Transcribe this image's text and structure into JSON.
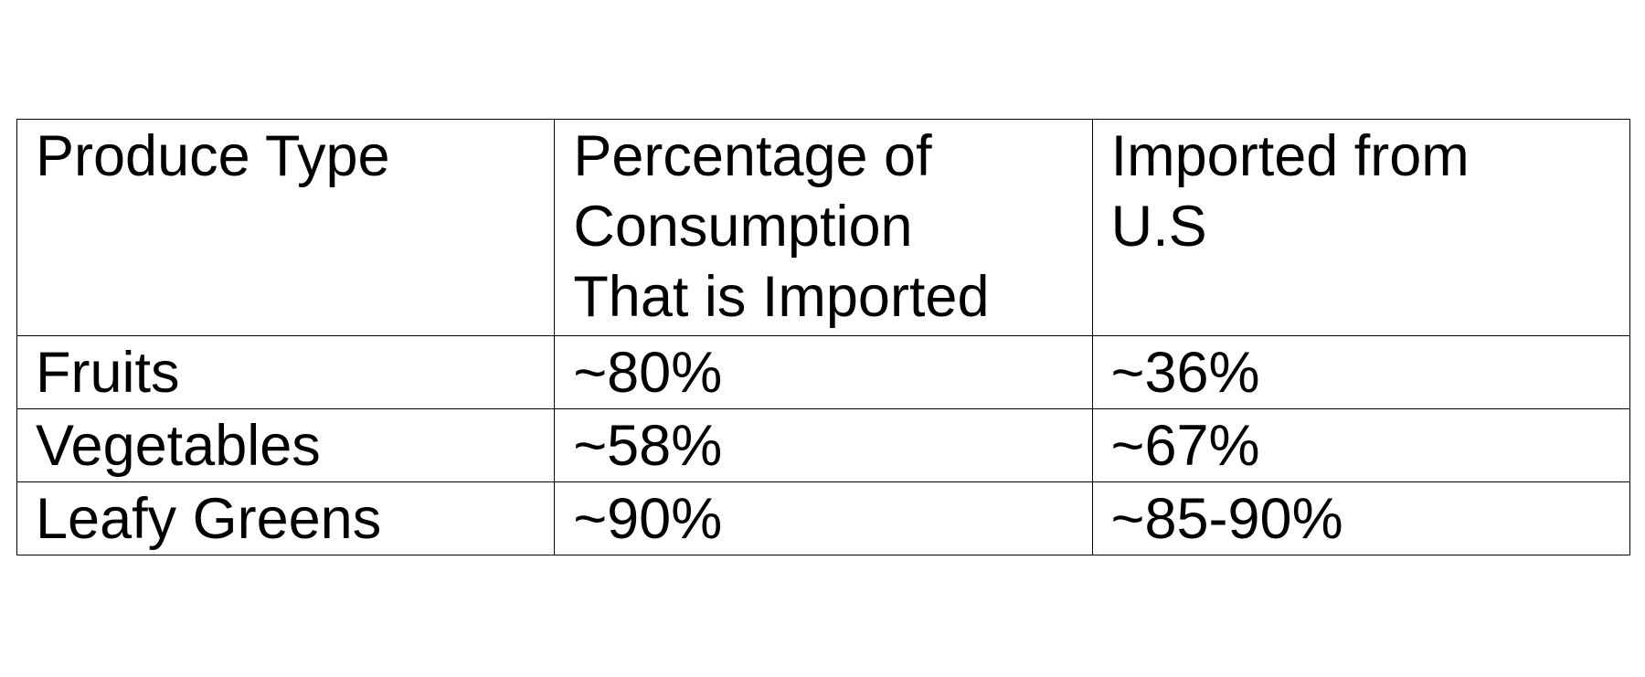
{
  "table": {
    "header": [
      "Produce Type",
      "Percentage of Consumption That is Imported",
      "Imported from U.S"
    ],
    "rows": [
      [
        "Fruits",
        "~80%",
        "~36%"
      ],
      [
        "Vegetables",
        "~58%",
        "~67%"
      ],
      [
        "Leafy Greens",
        "~90%",
        "~85-90%"
      ]
    ]
  }
}
